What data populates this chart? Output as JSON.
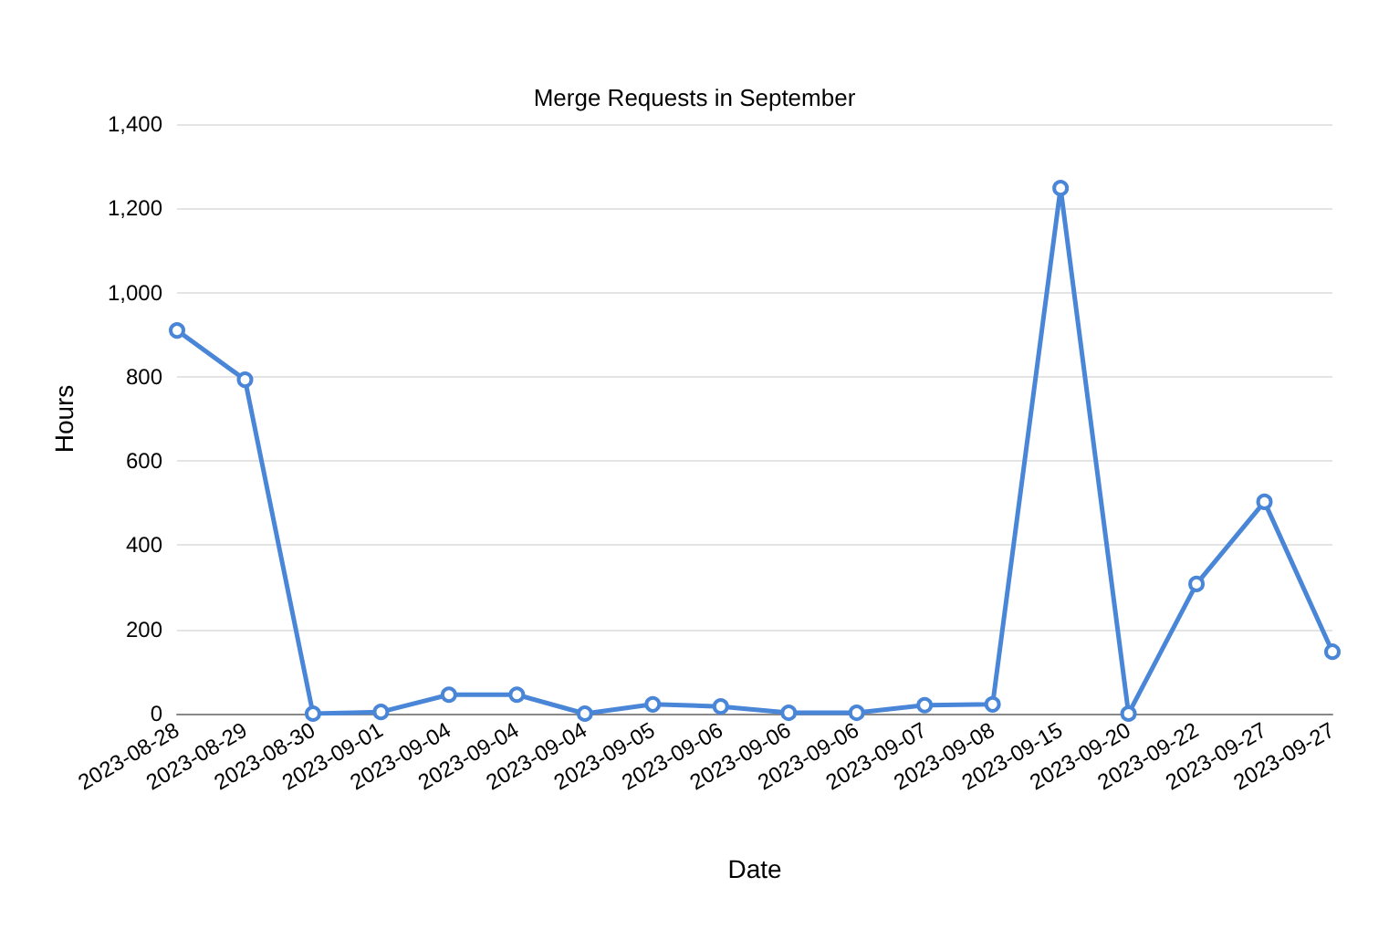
{
  "chart_data": {
    "type": "line",
    "title": "Merge Requests in September",
    "xlabel": "Date",
    "ylabel": "Hours",
    "categories": [
      "2023-08-28",
      "2023-08-29",
      "2023-08-30",
      "2023-09-01",
      "2023-09-04",
      "2023-09-04",
      "2023-09-04",
      "2023-09-05",
      "2023-09-06",
      "2023-09-06",
      "2023-09-06",
      "2023-09-07",
      "2023-09-08",
      "2023-09-15",
      "2023-09-20",
      "2023-09-22",
      "2023-09-27",
      "2023-09-27"
    ],
    "series": [
      {
        "color": "#4a86d8",
        "values": [
          910,
          793,
          0,
          4,
          45,
          45,
          0,
          22,
          17,
          2,
          2,
          20,
          22,
          1248,
          0,
          308,
          503,
          147
        ]
      }
    ],
    "ylim": [
      0,
      1400
    ],
    "yticks": [
      {
        "value": 0,
        "label": "0"
      },
      {
        "value": 200,
        "label": "200"
      },
      {
        "value": 400,
        "label": "400"
      },
      {
        "value": 600,
        "label": "600"
      },
      {
        "value": 800,
        "label": "800"
      },
      {
        "value": 1000,
        "label": "1,000"
      },
      {
        "value": 1200,
        "label": "1,200"
      },
      {
        "value": 1400,
        "label": "1,400"
      }
    ],
    "grid": "y",
    "marker": "circle",
    "line_style": "solid"
  }
}
